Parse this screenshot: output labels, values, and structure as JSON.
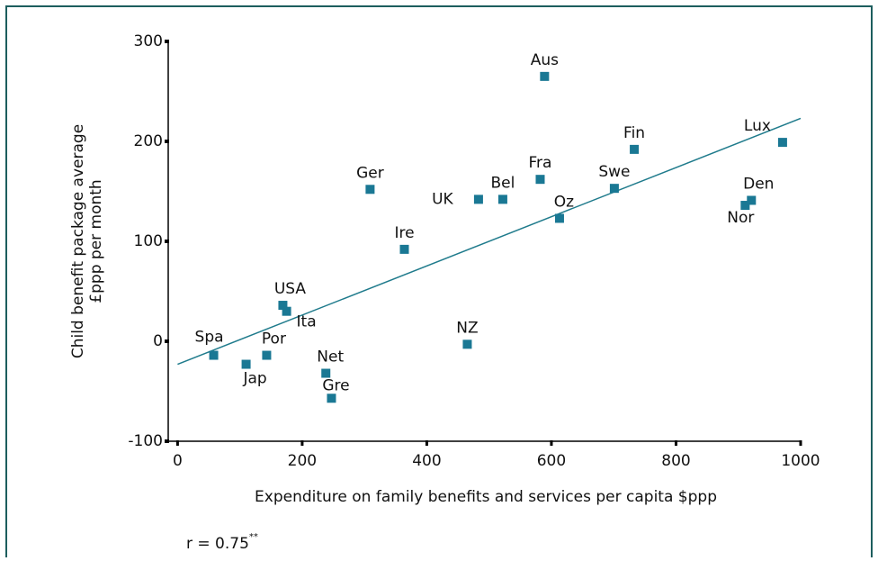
{
  "chart_data": {
    "type": "scatter",
    "xlabel": "Expenditure on family benefits and services per capita $ppp",
    "ylabel": [
      "Child benefit package average",
      "£ppp per month"
    ],
    "annotation": "r = 0.75",
    "annotation_superscript": "**",
    "color": "#1a7894",
    "line_color": "#1f7b8c",
    "xlim": [
      -15,
      1000
    ],
    "ylim": [
      -100,
      300
    ],
    "xticks": [
      0,
      200,
      400,
      600,
      800,
      1000
    ],
    "yticks": [
      -100,
      0,
      100,
      200,
      300
    ],
    "labels": [
      "Aus",
      "Fin",
      "Lux",
      "Fra",
      "Swe",
      "Ger",
      "UK",
      "Bel",
      "Oz",
      "Den",
      "Nor",
      "Ire",
      "USA",
      "Ita",
      "NZ",
      "Spa",
      "Por",
      "Jap",
      "Net",
      "Gre"
    ],
    "x": [
      589,
      733,
      971,
      582,
      701,
      309,
      483,
      522,
      613,
      921,
      911,
      364,
      169,
      175,
      465,
      58,
      143,
      110,
      238,
      247
    ],
    "y": [
      265,
      192,
      199,
      162,
      153,
      152,
      142,
      142,
      123,
      141,
      136,
      92,
      36,
      30,
      -3,
      -14,
      -14,
      -23,
      -32,
      -57
    ],
    "trend_line": {
      "x": [
        0,
        1000
      ],
      "y": [
        -23,
        223
      ]
    }
  }
}
